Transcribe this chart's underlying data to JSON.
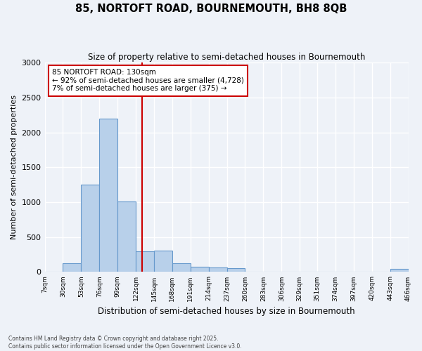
{
  "title_line1": "85, NORTOFT ROAD, BOURNEMOUTH, BH8 8QB",
  "title_line2": "Size of property relative to semi-detached houses in Bournemouth",
  "xlabel": "Distribution of semi-detached houses by size in Bournemouth",
  "ylabel": "Number of semi-detached properties",
  "footer_line1": "Contains HM Land Registry data © Crown copyright and database right 2025.",
  "footer_line2": "Contains public sector information licensed under the Open Government Licence v3.0.",
  "annotation_line1": "85 NORTOFT ROAD: 130sqm",
  "annotation_line2": "← 92% of semi-detached houses are smaller (4,728)",
  "annotation_line3": "7% of semi-detached houses are larger (375) →",
  "red_line_x": 130,
  "bar_color": "#b8d0ea",
  "bar_edge_color": "#6699cc",
  "red_line_color": "#cc0000",
  "background_color": "#eef2f8",
  "grid_color": "#ffffff",
  "bins": [
    7,
    30,
    53,
    76,
    99,
    122,
    145,
    168,
    191,
    214,
    237,
    260,
    283,
    306,
    329,
    351,
    374,
    397,
    420,
    443,
    466
  ],
  "counts": [
    5,
    130,
    1250,
    2200,
    1010,
    300,
    305,
    125,
    75,
    60,
    50,
    0,
    0,
    0,
    0,
    0,
    0,
    0,
    0,
    45,
    0
  ],
  "ylim": [
    0,
    3000
  ],
  "yticks": [
    0,
    500,
    1000,
    1500,
    2000,
    2500,
    3000
  ]
}
